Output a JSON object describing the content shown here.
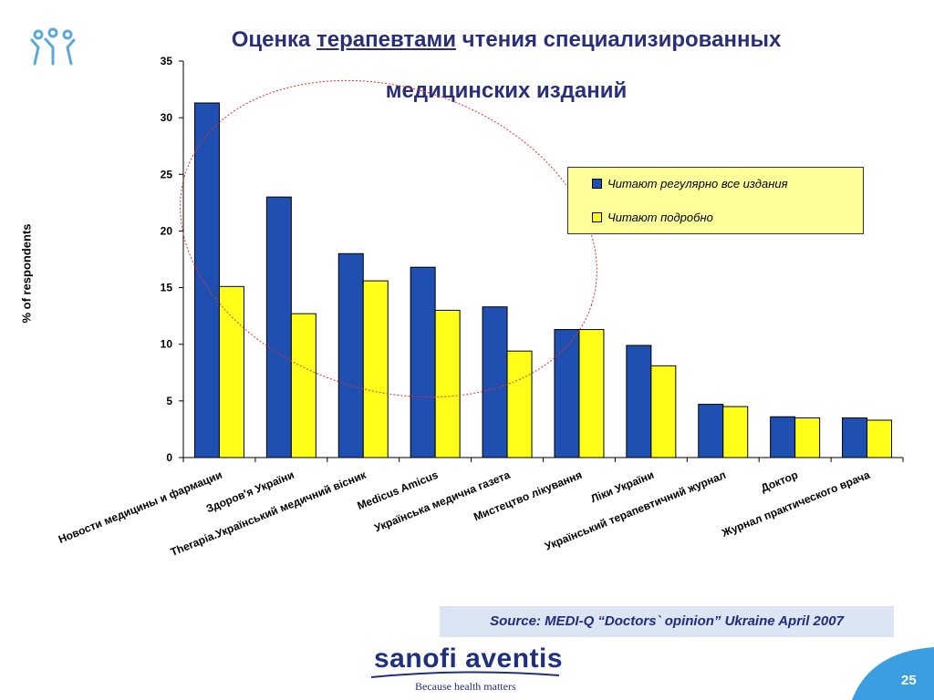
{
  "title": {
    "part1": "Оценка ",
    "underlined": "терапевтами",
    "part2": " чтения специализированных",
    "line2": "медицинских изданий"
  },
  "source": "Source: MEDI-Q “Doctors` opinion” Ukraine April 2007",
  "logo": {
    "name": "sanofi aventis",
    "tagline": "Because health matters"
  },
  "page_number": "25",
  "colors": {
    "series1": "#1f4fb0",
    "series2": "#ffff1a",
    "legend_bg": "#ffff99",
    "title": "#2a2f7a",
    "ellipse": "#e03030"
  },
  "chart_data": {
    "type": "bar",
    "ylabel": "% of respondents",
    "xlabel": "",
    "ylim": [
      0,
      35
    ],
    "yticks": [
      "0",
      "5",
      "10",
      "15",
      "20",
      "25",
      "30",
      "35"
    ],
    "categories": [
      "Новости медицины и фармации",
      "Здоров'я України",
      "Therapia.Український медичний вісник",
      "Medicus Amicus",
      "Українська медична газета",
      "Мистецтво лікування",
      "Ліки України",
      "Український терапевтичний журнал",
      "Доктор",
      "Журнал практического врача"
    ],
    "series": [
      {
        "name": "Читают регулярно все издания",
        "values": [
          31.3,
          23.0,
          18.0,
          16.8,
          13.3,
          11.3,
          9.9,
          4.7,
          3.6,
          3.5
        ]
      },
      {
        "name": "Читают подробно",
        "values": [
          15.1,
          12.7,
          15.6,
          13.0,
          9.4,
          11.3,
          8.1,
          4.5,
          3.5,
          3.3
        ]
      }
    ],
    "legend_position": "right"
  }
}
